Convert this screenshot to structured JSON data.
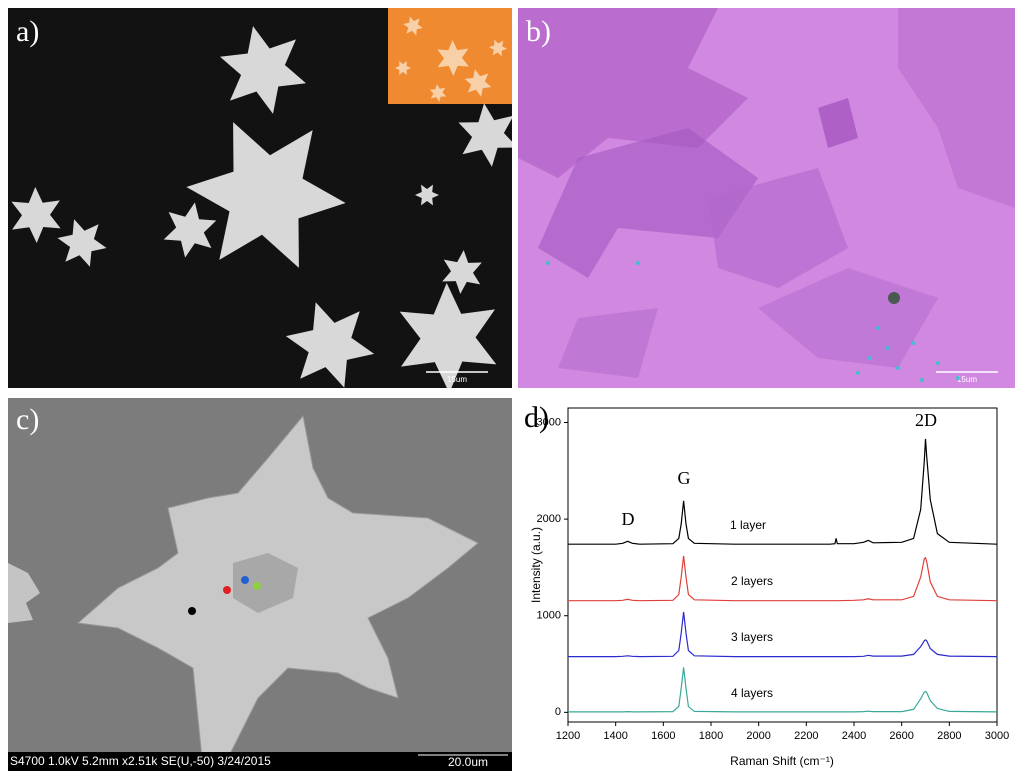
{
  "panels": {
    "a": {
      "label": "a)",
      "scale_bar": "15um"
    },
    "b": {
      "label": "b)",
      "scale_bar": "15um"
    },
    "c": {
      "label": "c)",
      "info": "S4700 1.0kV 5.2mm x2.51k SE(U,-50) 3/24/2015",
      "scale_bar": "20.0um"
    },
    "d": {
      "label": "d)"
    }
  },
  "chart_data": {
    "type": "line",
    "x_label": "Raman Shift (cm⁻¹)",
    "y_label": "Intensity (a.u.)",
    "peak_labels": [
      "D",
      "G",
      "2D"
    ],
    "x": [
      1200,
      1400,
      1430,
      1450,
      1470,
      1500,
      1640,
      1665,
      1675,
      1685,
      1695,
      1705,
      1730,
      1900,
      2100,
      2300,
      2320,
      2325,
      2330,
      2400,
      2440,
      2460,
      2480,
      2600,
      2650,
      2680,
      2695,
      2700,
      2705,
      2720,
      2750,
      2800,
      3000
    ],
    "series": [
      {
        "name": "1 layer",
        "color": "#000000",
        "values": [
          1740,
          1740,
          1750,
          1770,
          1750,
          1740,
          1745,
          1800,
          1950,
          2190,
          1950,
          1800,
          1750,
          1740,
          1740,
          1740,
          1745,
          1800,
          1745,
          1745,
          1760,
          1780,
          1755,
          1760,
          1800,
          2100,
          2600,
          2830,
          2650,
          2200,
          1850,
          1760,
          1740
        ]
      },
      {
        "name": "2 layers",
        "color": "#e0403a",
        "values": [
          1155,
          1155,
          1160,
          1170,
          1160,
          1155,
          1160,
          1220,
          1400,
          1620,
          1400,
          1220,
          1165,
          1155,
          1155,
          1155,
          1155,
          1155,
          1155,
          1160,
          1165,
          1175,
          1165,
          1165,
          1200,
          1400,
          1590,
          1600,
          1560,
          1350,
          1200,
          1165,
          1155
        ]
      },
      {
        "name": "3 layers",
        "color": "#2a2ad0",
        "values": [
          577,
          577,
          580,
          585,
          580,
          577,
          580,
          640,
          820,
          1040,
          820,
          640,
          585,
          577,
          577,
          577,
          577,
          577,
          577,
          577,
          580,
          590,
          582,
          582,
          600,
          680,
          740,
          750,
          740,
          660,
          600,
          582,
          577
        ]
      },
      {
        "name": "4 layers",
        "color": "#3aa89a",
        "values": [
          5,
          5,
          5,
          8,
          5,
          5,
          8,
          60,
          250,
          465,
          250,
          60,
          10,
          5,
          5,
          5,
          5,
          5,
          5,
          5,
          8,
          12,
          8,
          8,
          30,
          140,
          210,
          215,
          205,
          120,
          40,
          10,
          5
        ]
      }
    ],
    "xlim": [
      1200,
      3000
    ],
    "ylim": [
      -100,
      3150
    ],
    "xticks": [
      1200,
      1400,
      1600,
      1800,
      2000,
      2200,
      2400,
      2600,
      2800,
      3000
    ],
    "yticks": [
      0,
      1000,
      2000,
      3000
    ]
  }
}
